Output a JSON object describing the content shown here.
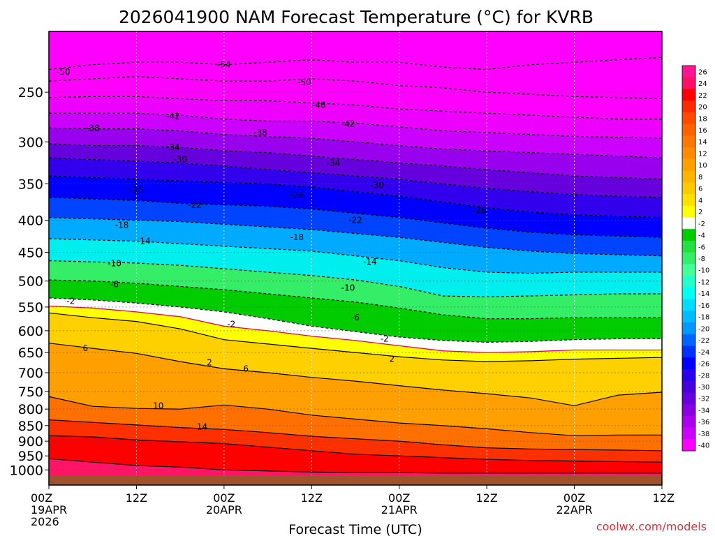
{
  "chart_data": {
    "type": "heatmap",
    "title": "2026041900 NAM Forecast Temperature (°C) for KVRB",
    "xlabel": "Forecast Time (UTC)",
    "ylabel": "",
    "credit": "coolwx.com/models",
    "x_range_hours": [
      0,
      84
    ],
    "y_range_hpa": [
      200,
      1020
    ],
    "x_ticks": [
      {
        "hour": 0,
        "line1": "00Z",
        "line2": "19APR",
        "line3": "2026"
      },
      {
        "hour": 12,
        "line1": "12Z",
        "line2": "",
        "line3": ""
      },
      {
        "hour": 24,
        "line1": "00Z",
        "line2": "20APR",
        "line3": ""
      },
      {
        "hour": 36,
        "line1": "12Z",
        "line2": "",
        "line3": ""
      },
      {
        "hour": 48,
        "line1": "00Z",
        "line2": "21APR",
        "line3": ""
      },
      {
        "hour": 60,
        "line1": "12Z",
        "line2": "",
        "line3": ""
      },
      {
        "hour": 72,
        "line1": "00Z",
        "line2": "22APR",
        "line3": ""
      },
      {
        "hour": 84,
        "line1": "12Z",
        "line2": "",
        "line3": ""
      }
    ],
    "y_ticks": [
      250,
      300,
      350,
      400,
      450,
      500,
      550,
      600,
      650,
      700,
      750,
      800,
      850,
      900,
      950,
      1000
    ],
    "colorbar": {
      "labels": [
        "26",
        "24",
        "22",
        "20",
        "18",
        "16",
        "14",
        "12",
        "10",
        "8",
        "6",
        "4",
        "2",
        "-2",
        "-4",
        "-6",
        "-8",
        "-10",
        "-12",
        "-14",
        "-16",
        "-18",
        "-20",
        "-22",
        "-24",
        "-26",
        "-28",
        "-30",
        "-32",
        "-34",
        "-36",
        "-38",
        "-40"
      ],
      "colors": [
        "#ff1493",
        "#ff1066",
        "#ff0000",
        "#ff2a00",
        "#ff4a00",
        "#ff6000",
        "#ff7600",
        "#ff8c00",
        "#ffa000",
        "#ffb400",
        "#ffc800",
        "#ffe000",
        "#ffff00",
        "#ffffff",
        "#00cc00",
        "#22e040",
        "#33ee66",
        "#44ff99",
        "#22ffcc",
        "#00ffee",
        "#00ddff",
        "#00bbff",
        "#0099ff",
        "#0066ff",
        "#0033ff",
        "#0000ff",
        "#2a00ee",
        "#4400dd",
        "#6600dd",
        "#8800dd",
        "#aa00ee",
        "#cc00ff",
        "#ff00ff"
      ]
    },
    "ground_color": "#a0522d",
    "series": [
      {
        "name": "-54 C isotherm",
        "hours": [
          0,
          6,
          12,
          18,
          24,
          30,
          36,
          42,
          48,
          54,
          60,
          66,
          72,
          78,
          84
        ],
        "pressure_hpa": [
          230,
          226,
          224,
          224,
          226,
          224,
          222,
          224,
          224,
          228,
          230,
          226,
          224,
          222,
          220
        ]
      },
      {
        "name": "-50 C isotherm",
        "hours": [
          0,
          6,
          12,
          18,
          24,
          30,
          36,
          42,
          48,
          54,
          60,
          66,
          72,
          78,
          84
        ],
        "pressure_hpa": [
          240,
          238,
          236,
          238,
          240,
          240,
          238,
          240,
          244,
          246,
          250,
          252,
          254,
          255,
          256
        ]
      },
      {
        "name": "-46 C isotherm",
        "hours": [
          0,
          6,
          12,
          18,
          24,
          30,
          36,
          42,
          48,
          54,
          60,
          66,
          72,
          78,
          84
        ],
        "pressure_hpa": [
          255,
          254,
          254,
          256,
          258,
          258,
          260,
          262,
          266,
          268,
          270,
          272,
          274,
          276,
          276
        ]
      },
      {
        "name": "-42 C isotherm",
        "hours": [
          0,
          6,
          12,
          18,
          24,
          30,
          36,
          42,
          48,
          54,
          60,
          66,
          72,
          78,
          84
        ],
        "pressure_hpa": [
          270,
          270,
          270,
          272,
          276,
          278,
          278,
          280,
          284,
          288,
          290,
          292,
          294,
          295,
          296
        ]
      },
      {
        "name": "-38 C isotherm",
        "hours": [
          0,
          6,
          12,
          18,
          24,
          30,
          36,
          42,
          48,
          54,
          60,
          66,
          72,
          78,
          84
        ],
        "pressure_hpa": [
          285,
          286,
          286,
          288,
          292,
          294,
          296,
          300,
          304,
          308,
          310,
          312,
          314,
          316,
          318
        ]
      },
      {
        "name": "-34 C isotherm",
        "hours": [
          0,
          6,
          12,
          18,
          24,
          30,
          36,
          42,
          48,
          54,
          60,
          66,
          72,
          78,
          84
        ],
        "pressure_hpa": [
          302,
          304,
          304,
          306,
          310,
          312,
          316,
          320,
          324,
          328,
          332,
          336,
          340,
          342,
          344
        ]
      },
      {
        "name": "-30 C isotherm",
        "hours": [
          0,
          6,
          12,
          18,
          24,
          30,
          36,
          42,
          48,
          54,
          60,
          66,
          72,
          78,
          84
        ],
        "pressure_hpa": [
          318,
          320,
          322,
          324,
          328,
          332,
          336,
          340,
          344,
          350,
          356,
          360,
          364,
          366,
          368
        ]
      },
      {
        "name": "-26 C isotherm",
        "hours": [
          0,
          6,
          12,
          18,
          24,
          30,
          36,
          42,
          48,
          54,
          60,
          66,
          72,
          78,
          84
        ],
        "pressure_hpa": [
          340,
          342,
          344,
          346,
          348,
          350,
          354,
          360,
          366,
          374,
          382,
          388,
          392,
          394,
          396
        ]
      },
      {
        "name": "-22 C isotherm",
        "hours": [
          0,
          6,
          12,
          18,
          24,
          30,
          36,
          42,
          48,
          54,
          60,
          66,
          72,
          78,
          84
        ],
        "pressure_hpa": [
          368,
          370,
          372,
          376,
          378,
          380,
          384,
          390,
          396,
          404,
          412,
          418,
          422,
          424,
          426
        ]
      },
      {
        "name": "-18 C isotherm",
        "hours": [
          0,
          6,
          12,
          18,
          24,
          30,
          36,
          42,
          48,
          54,
          60,
          66,
          72,
          78,
          84
        ],
        "pressure_hpa": [
          396,
          398,
          400,
          402,
          406,
          410,
          414,
          420,
          426,
          434,
          442,
          448,
          452,
          454,
          456
        ]
      },
      {
        "name": "-14 C isotherm",
        "hours": [
          0,
          6,
          12,
          18,
          24,
          30,
          36,
          42,
          48,
          54,
          60,
          66,
          72,
          78,
          84
        ],
        "pressure_hpa": [
          428,
          430,
          432,
          436,
          440,
          444,
          448,
          456,
          464,
          476,
          484,
          486,
          484,
          484,
          484
        ]
      },
      {
        "name": "-10 C isotherm",
        "hours": [
          0,
          6,
          12,
          18,
          24,
          30,
          36,
          42,
          48,
          54,
          60,
          66,
          72,
          78,
          84
        ],
        "pressure_hpa": [
          464,
          466,
          468,
          472,
          478,
          484,
          490,
          498,
          510,
          528,
          530,
          528,
          526,
          524,
          524
        ]
      },
      {
        "name": "-6 C isotherm",
        "hours": [
          0,
          6,
          12,
          18,
          24,
          30,
          36,
          42,
          48,
          54,
          60,
          66,
          72,
          78,
          84
        ],
        "pressure_hpa": [
          498,
          500,
          504,
          510,
          516,
          524,
          532,
          540,
          552,
          566,
          574,
          574,
          572,
          572,
          572
        ]
      },
      {
        "name": "-2 C isotherm",
        "hours": [
          0,
          6,
          12,
          18,
          24,
          30,
          36,
          42,
          48,
          54,
          60,
          66,
          72,
          78,
          84
        ],
        "pressure_hpa": [
          532,
          536,
          542,
          550,
          560,
          574,
          590,
          602,
          614,
          622,
          626,
          624,
          620,
          618,
          618
        ]
      },
      {
        "name": "0 C isotherm",
        "hours": [
          0,
          6,
          12,
          18,
          24,
          30,
          36,
          42,
          48,
          54,
          60,
          66,
          72,
          78,
          84
        ],
        "pressure_hpa": [
          548,
          552,
          560,
          570,
          590,
          600,
          612,
          622,
          634,
          646,
          650,
          648,
          644,
          644,
          644
        ]
      },
      {
        "name": "2 C isotherm",
        "hours": [
          0,
          6,
          12,
          18,
          24,
          30,
          36,
          42,
          48,
          54,
          60,
          66,
          72,
          78,
          84
        ],
        "pressure_hpa": [
          562,
          572,
          580,
          596,
          620,
          630,
          640,
          650,
          660,
          668,
          672,
          670,
          666,
          664,
          662
        ]
      },
      {
        "name": "6 C isotherm",
        "hours": [
          0,
          6,
          12,
          18,
          24,
          30,
          36,
          42,
          48,
          54,
          60,
          66,
          72,
          78,
          84
        ],
        "pressure_hpa": [
          628,
          640,
          652,
          672,
          690,
          700,
          712,
          722,
          734,
          746,
          756,
          768,
          790,
          760,
          752
        ]
      },
      {
        "name": "10 C isotherm",
        "hours": [
          0,
          6,
          12,
          18,
          24,
          30,
          36,
          42,
          48,
          54,
          60,
          66,
          72,
          78,
          84
        ],
        "pressure_hpa": [
          764,
          792,
          798,
          800,
          788,
          800,
          818,
          830,
          842,
          850,
          860,
          872,
          882,
          880,
          880
        ]
      },
      {
        "name": "14 C isotherm",
        "hours": [
          0,
          6,
          12,
          18,
          24,
          30,
          36,
          42,
          48,
          54,
          60,
          66,
          72,
          78,
          84
        ],
        "pressure_hpa": [
          832,
          840,
          848,
          856,
          862,
          872,
          884,
          892,
          900,
          912,
          922,
          926,
          928,
          930,
          932
        ]
      },
      {
        "name": "18 C isotherm",
        "hours": [
          0,
          6,
          12,
          18,
          24,
          30,
          36,
          42,
          48,
          54,
          60,
          66,
          72,
          78,
          84
        ],
        "pressure_hpa": [
          882,
          886,
          896,
          902,
          908,
          920,
          932,
          944,
          950,
          956,
          962,
          966,
          968,
          970,
          972
        ]
      },
      {
        "name": "22 C isotherm",
        "hours": [
          0,
          6,
          12,
          18,
          24,
          30,
          36,
          42,
          48,
          54,
          60,
          66,
          72,
          78,
          84
        ],
        "pressure_hpa": [
          960,
          972,
          984,
          990,
          1000,
          1004,
          1008,
          1010,
          1010,
          1012,
          1012,
          1012,
          1012,
          1012,
          1012
        ]
      }
    ],
    "contour_labels": [
      {
        "text": "-50",
        "hour": 2,
        "hpa": 232
      },
      {
        "text": "-54",
        "hour": 24,
        "hpa": 226
      },
      {
        "text": "-50",
        "hour": 35,
        "hpa": 241
      },
      {
        "text": "-46",
        "hour": 37,
        "hpa": 262
      },
      {
        "text": "-42",
        "hour": 17,
        "hpa": 273
      },
      {
        "text": "-42",
        "hour": 41,
        "hpa": 281
      },
      {
        "text": "-38",
        "hour": 6,
        "hpa": 285
      },
      {
        "text": "-38",
        "hour": 29,
        "hpa": 290
      },
      {
        "text": "-34",
        "hour": 17,
        "hpa": 306
      },
      {
        "text": "-34",
        "hour": 39,
        "hpa": 324
      },
      {
        "text": "-30",
        "hour": 18,
        "hpa": 320
      },
      {
        "text": "-30",
        "hour": 45,
        "hpa": 352
      },
      {
        "text": "-26",
        "hour": 12,
        "hpa": 358
      },
      {
        "text": "-26",
        "hour": 34,
        "hpa": 365
      },
      {
        "text": "-26",
        "hour": 59,
        "hpa": 386
      },
      {
        "text": "-22",
        "hour": 20,
        "hpa": 378
      },
      {
        "text": "-22",
        "hour": 42,
        "hpa": 400
      },
      {
        "text": "-18",
        "hour": 10,
        "hpa": 407
      },
      {
        "text": "-18",
        "hour": 34,
        "hpa": 426
      },
      {
        "text": "-14",
        "hour": 13,
        "hpa": 432
      },
      {
        "text": "-14",
        "hour": 44,
        "hpa": 466
      },
      {
        "text": "-10",
        "hour": 9,
        "hpa": 469
      },
      {
        "text": "-10",
        "hour": 41,
        "hpa": 513
      },
      {
        "text": "-6",
        "hour": 9,
        "hpa": 506
      },
      {
        "text": "-6",
        "hour": 42,
        "hpa": 572
      },
      {
        "text": "-2",
        "hour": 3,
        "hpa": 538
      },
      {
        "text": "-2",
        "hour": 25,
        "hpa": 586
      },
      {
        "text": "-2",
        "hour": 46,
        "hpa": 618
      },
      {
        "text": "2",
        "hour": 22,
        "hpa": 674
      },
      {
        "text": "2",
        "hour": 47,
        "hpa": 666
      },
      {
        "text": "6",
        "hour": 5,
        "hpa": 640
      },
      {
        "text": "6",
        "hour": 27,
        "hpa": 690
      },
      {
        "text": "10",
        "hour": 15,
        "hpa": 790
      },
      {
        "text": "14",
        "hour": 21,
        "hpa": 854
      }
    ]
  }
}
